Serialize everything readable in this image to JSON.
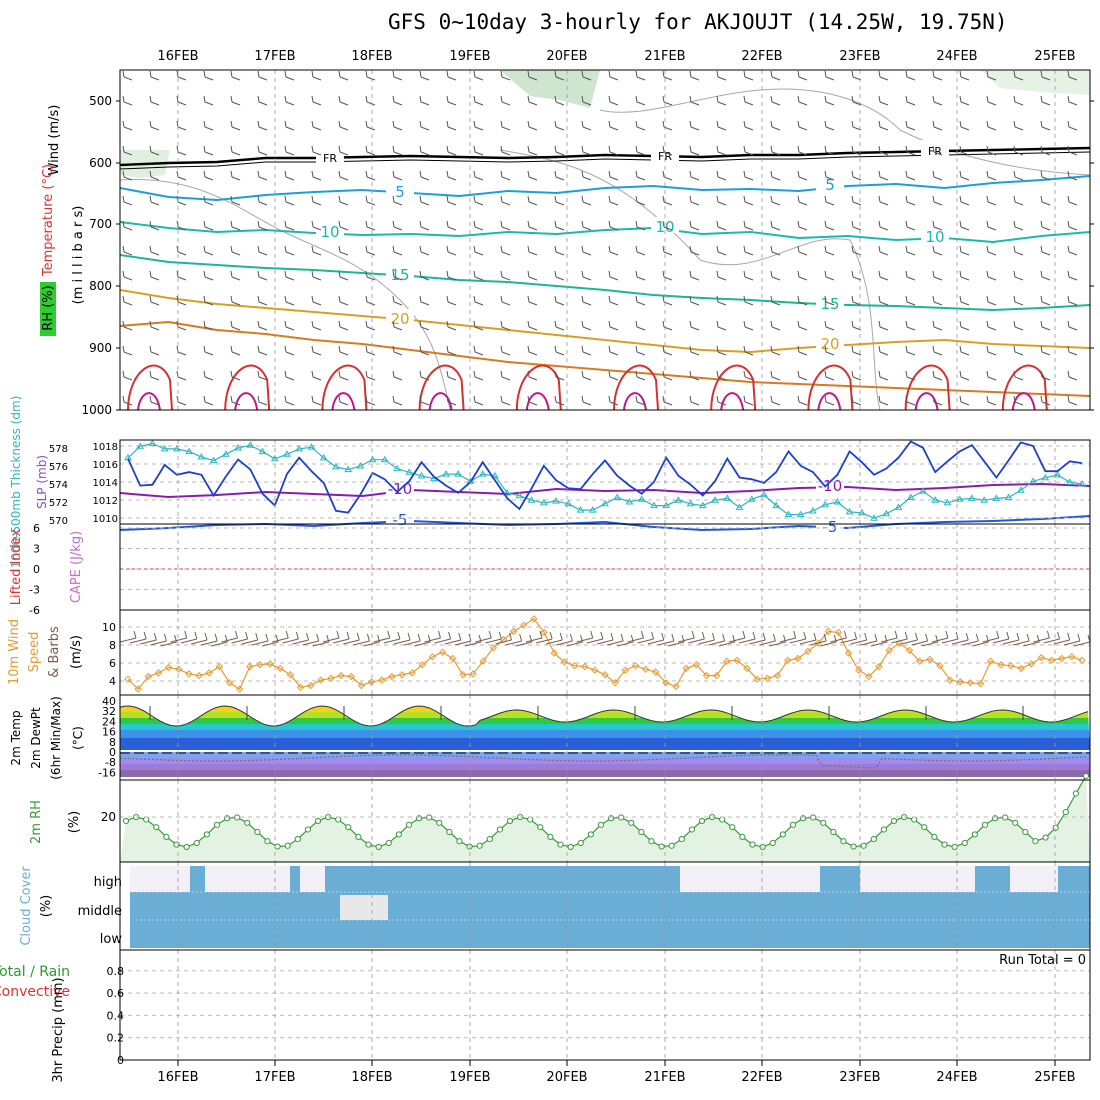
{
  "title": "GFS 0~10day 3-hourly for AKJOUJT (14.25W, 19.75N)",
  "colors": {
    "slp": "#1c3fcf",
    "thick": "#2ab7c2",
    "wind": "#e89a30",
    "barb": "#7a5c48",
    "rh": "#3a9a3a",
    "rhFill": "#e4f2e4",
    "cloud": "#6aaed6",
    "cloudClear": "#f3f0f8",
    "cloudMid": "#e8e8e8",
    "lifted": "#e04040",
    "dew": "#8a6a60"
  },
  "chart_data": {
    "type": "meteogram",
    "x_dates": [
      "16FEB",
      "17FEB",
      "18FEB",
      "19FEB",
      "20FEB",
      "21FEB",
      "22FEB",
      "23FEB",
      "24FEB",
      "25FEB"
    ],
    "panels": {
      "upper_air": {
        "ylabel_wind": "Wind (m/s)",
        "ylabel_temp": "Temperature (°C)",
        "ylabel_rh": "RH (%)",
        "ylabel_unit": "(m i l l i b a r s)",
        "pressure_ticks": [
          "500",
          "600",
          "700",
          "800",
          "900",
          "1000"
        ],
        "isotherms": [
          {
            "name": "-10",
            "color": "#8a1bb0",
            "labels": [
              "-10",
              "-10"
            ],
            "y": [
              493,
              497,
              495,
              492,
              494,
              496,
              490,
              492,
              494,
              489,
              491,
              490,
              493,
              491,
              488,
              487,
              490,
              488,
              485,
              484,
              486
            ]
          },
          {
            "name": "-5",
            "color": "#2456d6",
            "labels": [
              "-5",
              "-5"
            ],
            "y": [
              530,
              528,
              525,
              524,
              526,
              523,
              521,
              523,
              525,
              524,
              522,
              527,
              530,
              529,
              526,
              528,
              524,
              522,
              521,
              519,
              516
            ]
          },
          {
            "name": "FR",
            "color": "#000000",
            "labels": [
              "FR",
              "FR",
              "FR"
            ],
            "y": [
              165,
              163,
              162,
              158,
              158,
              157,
              156,
              157,
              158,
              157,
              155,
              156,
              157,
              155,
              155,
              153,
              152,
              151,
              150,
              149,
              148
            ]
          },
          {
            "name": "5",
            "color": "#1aa0d8",
            "labels": [
              "5",
              "5"
            ],
            "y": [
              188,
              197,
              200,
              195,
              192,
              190,
              193,
              196,
              191,
              193,
              188,
              186,
              190,
              189,
              191,
              186,
              184,
              188,
              183,
              180,
              176
            ]
          },
          {
            "name": "10",
            "color": "#19b8b0",
            "labels": [
              "10",
              "10",
              "10"
            ],
            "y": [
              222,
              228,
              232,
              230,
              233,
              235,
              234,
              236,
              232,
              234,
              230,
              228,
              234,
              232,
              238,
              236,
              240,
              238,
              242,
              236,
              232
            ]
          },
          {
            "name": "15",
            "color": "#19b890",
            "labels": [
              "15",
              "15"
            ],
            "y": [
              255,
              262,
              265,
              268,
              270,
              273,
              276,
              280,
              282,
              286,
              290,
              295,
              298,
              300,
              303,
              305,
              306,
              308,
              310,
              308,
              305
            ]
          },
          {
            "name": "20",
            "color": "#d8a020",
            "labels": [
              "20",
              "20"
            ],
            "y": [
              290,
              298,
              304,
              308,
              312,
              316,
              320,
              325,
              330,
              335,
              340,
              345,
              350,
              352,
              348,
              345,
              342,
              340,
              344,
              346,
              348
            ]
          },
          {
            "name": "25",
            "color": "#d87a20",
            "labels": [],
            "y": [
              326,
              322,
              330,
              334,
              340,
              344,
              350,
              356,
              362,
              366,
              370,
              374,
              378,
              382,
              384,
              386,
              388,
              390,
              392,
              394,
              396
            ]
          }
        ]
      },
      "slp_thickness": {
        "ylabel_left": "1000-500mb Thickness (dm)",
        "ylabel_right": "SLP (mb)",
        "thickness_ticks": [
          "570",
          "572",
          "574",
          "576",
          "578"
        ],
        "slp_ticks": [
          "1010",
          "1012",
          "1014",
          "1016",
          "1018"
        ],
        "slp": [
          1016.6,
          1013.6,
          1013.7,
          1015.9,
          1014.8,
          1015.1,
          1014.8,
          1012.5,
          1014.6,
          1016.5,
          1015.4,
          1012.7,
          1011.4,
          1014.9,
          1016.7,
          1015.2,
          1013.9,
          1010.8,
          1010.6,
          1012.6,
          1015.0,
          1014.3,
          1012.9,
          1014.1,
          1016.2,
          1014.6,
          1013.6,
          1012.8,
          1014.0,
          1016.2,
          1014.2,
          1012.2,
          1011.0,
          1013.3,
          1015.8,
          1014.2,
          1013.3,
          1013.2,
          1014.9,
          1016.4,
          1014.7,
          1013.6,
          1012.7,
          1014.0,
          1016.7,
          1014.7,
          1013.7,
          1012.5,
          1014.1,
          1016.6,
          1014.5,
          1014.3,
          1013.9,
          1015.1,
          1017.4,
          1015.8,
          1015.1,
          1013.5,
          1014.8,
          1017.4,
          1016.2,
          1014.8,
          1015.5,
          1016.7,
          1018.5,
          1017.8,
          1015.1,
          1016.3,
          1017.4,
          1018.1,
          1016.3,
          1014.5,
          1016.4,
          1018.4,
          1018.0,
          1015.2,
          1015.2,
          1016.3,
          1016.1
        ],
        "thickness": [
          576.9,
          578.2,
          578.5,
          577.9,
          577.9,
          577.6,
          577.0,
          576.6,
          577.3,
          578.0,
          578.3,
          577.6,
          576.8,
          577.3,
          577.9,
          578.1,
          576.9,
          575.9,
          575.6,
          576.0,
          576.7,
          576.7,
          575.7,
          575.3,
          574.9,
          574.6,
          575.1,
          575.1,
          574.3,
          575.1,
          574.9,
          573.0,
          572.7,
          572.2,
          571.9,
          572.1,
          571.8,
          571.1,
          571.1,
          571.8,
          572.5,
          572.0,
          572.3,
          571.6,
          571.6,
          572.2,
          571.8,
          571.6,
          572.2,
          572.4,
          571.4,
          572.3,
          572.8,
          571.6,
          570.6,
          570.6,
          571.0,
          571.7,
          572.0,
          570.9,
          570.8,
          570.2,
          570.7,
          571.4,
          572.5,
          573.2,
          572.2,
          571.9,
          572.3,
          572.4,
          572.2,
          572.4,
          572.5,
          573.3,
          574.3,
          574.7,
          575.0,
          574.2,
          574.0
        ]
      },
      "stability": {
        "ylabel_left": "Lifted Index",
        "ylabel_right": "CAPE (J/kg)",
        "ticks": [
          "6",
          "3",
          "0",
          "-3",
          "-6"
        ]
      },
      "wind10m": {
        "ylabel": "10m Wind Speed & Barbs",
        "unit": "(m/s)",
        "ticks": [
          "4",
          "6",
          "8",
          "10"
        ],
        "speed": [
          4.2,
          3.1,
          4.5,
          4.9,
          5.5,
          5.3,
          4.8,
          4.6,
          4.9,
          5.6,
          3.8,
          3.1,
          5.6,
          5.8,
          5.9,
          5.4,
          4.7,
          3.3,
          3.5,
          4.1,
          4.3,
          4.6,
          4.5,
          3.5,
          3.9,
          4.1,
          4.5,
          4.7,
          4.9,
          5.8,
          6.7,
          7.2,
          6.5,
          4.7,
          4.8,
          6.2,
          7.7,
          8.6,
          9.5,
          10.2,
          10.9,
          9.4,
          7.1,
          6.1,
          5.7,
          5.6,
          5.2,
          4.7,
          3.8,
          5.2,
          5.7,
          5.3,
          5.0,
          3.8,
          3.4,
          5.4,
          5.8,
          4.6,
          4.6,
          6.2,
          6.3,
          5.4,
          4.2,
          4.3,
          4.6,
          6.3,
          6.5,
          7.3,
          8.2,
          9.5,
          9.4,
          7.1,
          5.2,
          4.5,
          5.6,
          7.4,
          8.2,
          7.4,
          6.2,
          6.4,
          5.7,
          4.1,
          3.9,
          3.8,
          3.7,
          6.2,
          5.8,
          5.7,
          5.4,
          5.9,
          6.6,
          6.3,
          6.5,
          6.7,
          6.3
        ]
      },
      "temperature": {
        "ylabel": "2m Temp 2m DewPt (6hr Min/Max)",
        "unit": "(°C)",
        "ticks": [
          "40",
          "32",
          "24",
          "16",
          "8",
          "0",
          "-8",
          "-16"
        ]
      },
      "rh2m": {
        "ylabel": "2m RH",
        "unit": "(%)",
        "ticks": [
          "20"
        ]
      },
      "cloud": {
        "ylabel": "Cloud Cover",
        "unit": "(%)",
        "levels": [
          "high",
          "middle",
          "low"
        ]
      },
      "precip": {
        "ylabel_total": "Total / Rain",
        "ylabel_conv": "Convective",
        "ylabel_axis": "3hr Precip (mm)",
        "ticks": [
          "0",
          "0.2",
          "0.4",
          "0.6",
          "0.8"
        ],
        "run_total": "Run Total = 0"
      }
    }
  }
}
